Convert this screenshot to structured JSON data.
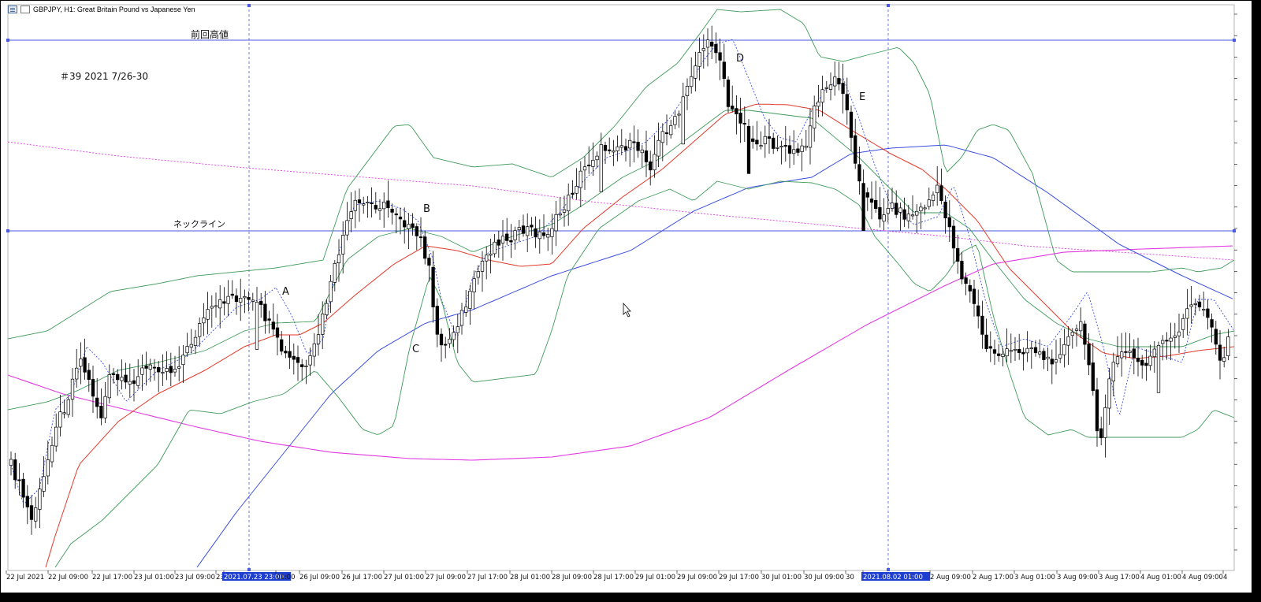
{
  "header": {
    "symbol_title": "GBPJPY, H1:  Great Britain Pound vs Japanese Yen"
  },
  "annotations": {
    "prev_high_label": "前回高値",
    "neckline_label": "ネックライン",
    "note": "＃39   2021 7/26-30",
    "letters": [
      "A",
      "B",
      "C",
      "D",
      "E"
    ]
  },
  "colors": {
    "candle": "#000000",
    "bollinger": "#3f9a5a",
    "ma_red": "#e23a2a",
    "ma_blue": "#3b4fe0",
    "ma_magenta": "#e23ae0",
    "signal_dotted": "#3b4fe0",
    "hline": "#4a5ae0",
    "vline": "#4a5ae0",
    "time_highlight_bg": "#1e3fcf"
  },
  "chart_data": {
    "type": "candlestick",
    "symbol": "GBPJPY",
    "timeframe": "H1",
    "x_ticks": [
      "22 Jul 2021",
      "22 Jul 09:00",
      "22 Jul 17:00",
      "23 Jul 01:00",
      "23 Jul 09:00",
      "23",
      "2021.07.23 23:00",
      "01:00",
      "26 Jul 09:00",
      "26 Jul 17:00",
      "27 Jul 01:00",
      "27 Jul 09:00",
      "27 Jul 17:00",
      "28 Jul 01:00",
      "28 Jul 09:00",
      "28 Jul 17:00",
      "29 Jul 01:00",
      "29 Jul 09:00",
      "29 Jul 17:00",
      "30 Jul 01:00",
      "30 Jul 09:00",
      "30",
      "2021.08.02 01:00",
      "2 Aug 09:00",
      "2 Aug 17:00",
      "3 Aug 01:00",
      "3 Aug 09:00",
      "3 Aug 17:00",
      "4 Aug 01:00",
      "4 Aug 09:00",
      "4"
    ],
    "highlighted_times": [
      "2021.07.23 23:00",
      "2021.08.02 01:00"
    ],
    "horizontal_lines": [
      "前回高値",
      "ネックライン"
    ],
    "overlays": [
      "Bollinger Bands",
      "Moving Average (red)",
      "Moving Average (blue)",
      "Moving Average (magenta)",
      "Moving Average (magenta dotted)",
      "Signal (blue dotted)"
    ]
  }
}
